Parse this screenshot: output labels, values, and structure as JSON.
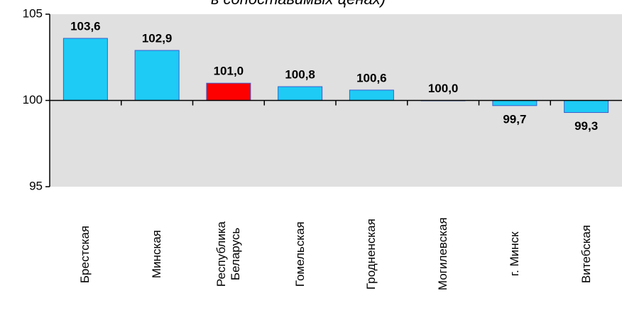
{
  "chart_data": {
    "type": "bar",
    "title": "в сопоставимых ценах)",
    "categories": [
      "Брестская",
      "Минская",
      "Республика\nБеларусь",
      "Гомельская",
      "Гродненская",
      "Могилевская",
      "г. Минск",
      "Витебская"
    ],
    "values": [
      103.6,
      102.9,
      101.0,
      100.8,
      100.6,
      100.0,
      99.7,
      99.3
    ],
    "value_labels": [
      "103,6",
      "102,9",
      "101,0",
      "100,8",
      "100,6",
      "100,0",
      "99,7",
      "99,3"
    ],
    "colors": [
      "#1ecbf5",
      "#1ecbf5",
      "#ff0000",
      "#1ecbf5",
      "#1ecbf5",
      "#1ecbf5",
      "#1ecbf5",
      "#1ecbf5"
    ],
    "baseline": 100,
    "ylim": [
      95,
      105
    ],
    "yticks": [
      95,
      100,
      105
    ]
  }
}
